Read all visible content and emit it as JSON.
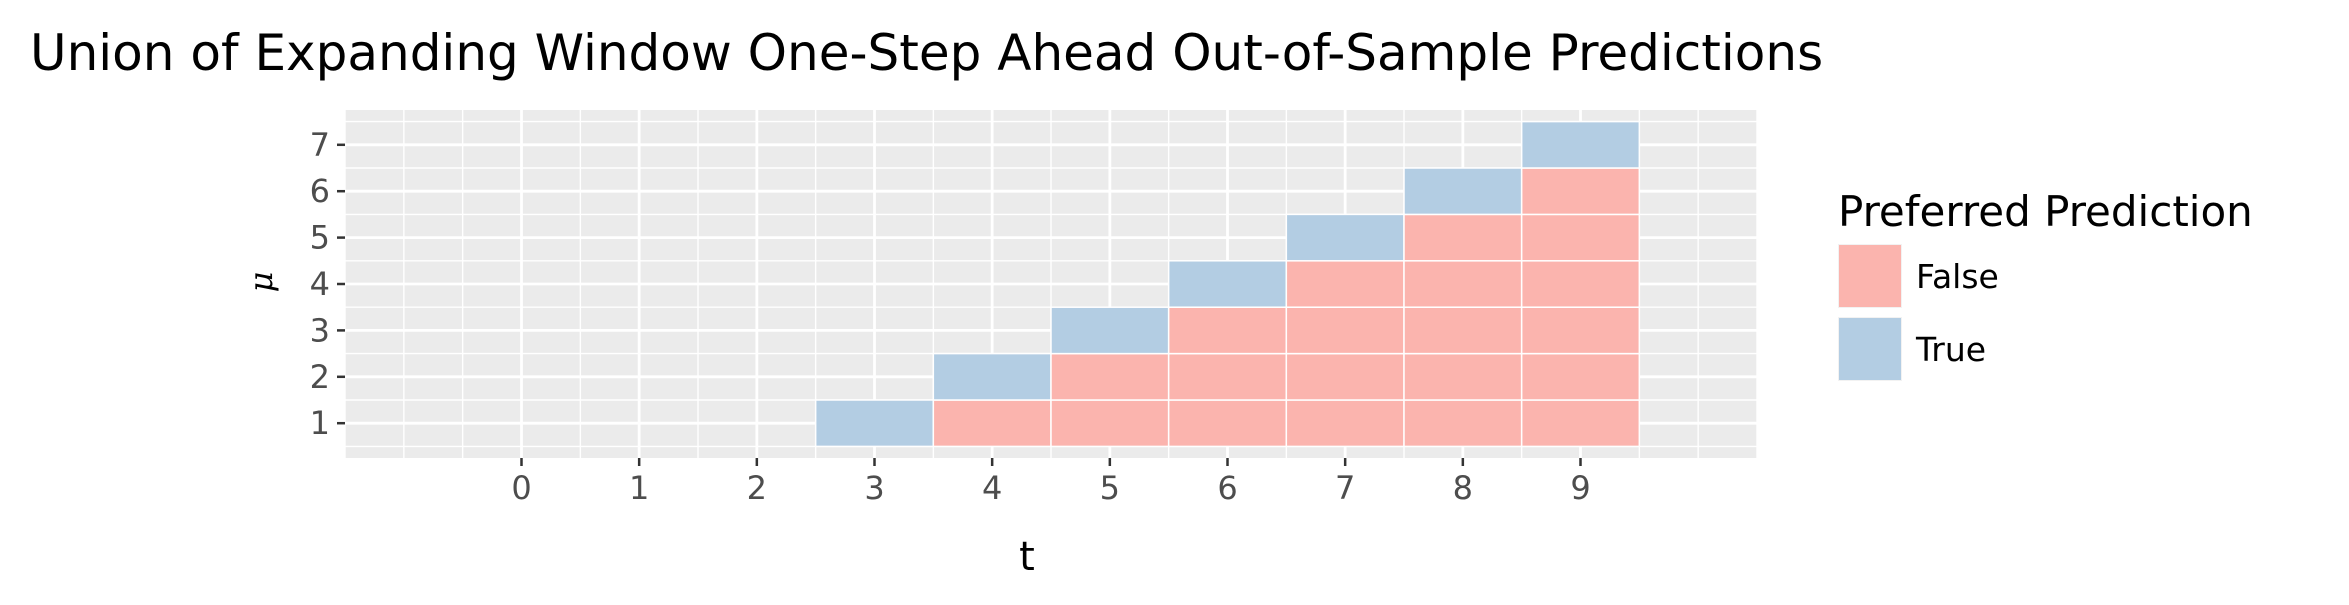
{
  "chart_data": {
    "type": "heatmap",
    "title": "Union of Expanding Window One-Step Ahead Out-of-Sample Predictions",
    "xlabel": "t",
    "ylabel": "μ",
    "x_ticks": [
      "0",
      "1",
      "2",
      "3",
      "4",
      "5",
      "6",
      "7",
      "8",
      "9"
    ],
    "y_ticks": [
      "1",
      "2",
      "3",
      "4",
      "5",
      "6",
      "7"
    ],
    "xlim": [
      -1.5,
      10.5
    ],
    "ylim": [
      0.25,
      7.75
    ],
    "grid": true,
    "legend": {
      "title": "Preferred Prediction",
      "position": "right",
      "entries": [
        {
          "label": "False",
          "color": "#fbb4ae"
        },
        {
          "label": "True",
          "color": "#b3cde3"
        }
      ]
    },
    "cells": [
      {
        "t": 3,
        "mu": 1,
        "preferred": true
      },
      {
        "t": 4,
        "mu": 1,
        "preferred": false
      },
      {
        "t": 4,
        "mu": 2,
        "preferred": true
      },
      {
        "t": 5,
        "mu": 1,
        "preferred": false
      },
      {
        "t": 5,
        "mu": 2,
        "preferred": false
      },
      {
        "t": 5,
        "mu": 3,
        "preferred": true
      },
      {
        "t": 6,
        "mu": 1,
        "preferred": false
      },
      {
        "t": 6,
        "mu": 2,
        "preferred": false
      },
      {
        "t": 6,
        "mu": 3,
        "preferred": false
      },
      {
        "t": 6,
        "mu": 4,
        "preferred": true
      },
      {
        "t": 7,
        "mu": 1,
        "preferred": false
      },
      {
        "t": 7,
        "mu": 2,
        "preferred": false
      },
      {
        "t": 7,
        "mu": 3,
        "preferred": false
      },
      {
        "t": 7,
        "mu": 4,
        "preferred": false
      },
      {
        "t": 7,
        "mu": 5,
        "preferred": true
      },
      {
        "t": 8,
        "mu": 1,
        "preferred": false
      },
      {
        "t": 8,
        "mu": 2,
        "preferred": false
      },
      {
        "t": 8,
        "mu": 3,
        "preferred": false
      },
      {
        "t": 8,
        "mu": 4,
        "preferred": false
      },
      {
        "t": 8,
        "mu": 5,
        "preferred": false
      },
      {
        "t": 8,
        "mu": 6,
        "preferred": true
      },
      {
        "t": 9,
        "mu": 1,
        "preferred": false
      },
      {
        "t": 9,
        "mu": 2,
        "preferred": false
      },
      {
        "t": 9,
        "mu": 3,
        "preferred": false
      },
      {
        "t": 9,
        "mu": 4,
        "preferred": false
      },
      {
        "t": 9,
        "mu": 5,
        "preferred": false
      },
      {
        "t": 9,
        "mu": 6,
        "preferred": false
      },
      {
        "t": 9,
        "mu": 7,
        "preferred": true
      }
    ]
  },
  "colors": {
    "panel_background": "#ebebeb",
    "grid_line": "#ffffff",
    "false_fill": "#fbb4ae",
    "true_fill": "#b3cde3"
  }
}
